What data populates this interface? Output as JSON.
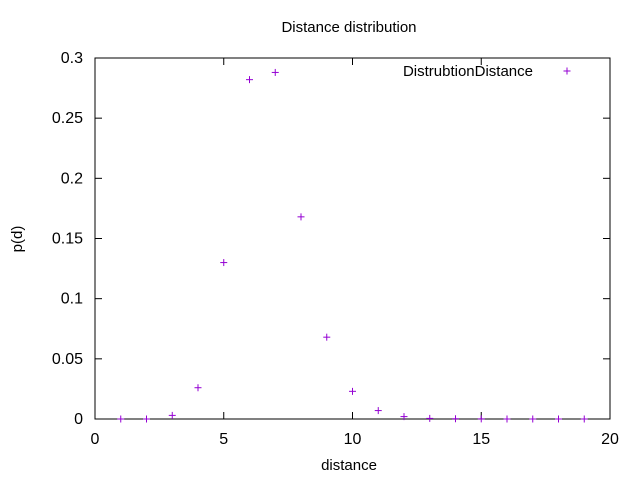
{
  "chart_data": {
    "type": "scatter",
    "title": "Distance distribution",
    "xlabel": "distance",
    "ylabel": "p(d)",
    "xlim": [
      0,
      20
    ],
    "ylim": [
      0,
      0.3
    ],
    "xticks": [
      0,
      5,
      10,
      15,
      20
    ],
    "yticks": [
      0,
      0.05,
      0.1,
      0.15,
      0.2,
      0.25,
      0.3
    ],
    "ytick_labels": [
      "0",
      "0.05",
      "0.1",
      "0.15",
      "0.2",
      "0.25",
      "0.3"
    ],
    "grid": false,
    "legend": "top-right",
    "marker": "plus",
    "series": [
      {
        "name": "DistrubtionDistance",
        "color": "#9400d3",
        "x": [
          1,
          2,
          3,
          4,
          5,
          6,
          7,
          8,
          9,
          10,
          11,
          12,
          13,
          14,
          15,
          16,
          17,
          18,
          19
        ],
        "y": [
          0.0,
          0.0,
          0.003,
          0.026,
          0.13,
          0.282,
          0.288,
          0.168,
          0.068,
          0.023,
          0.007,
          0.002,
          0.0005,
          0.0002,
          0.0001,
          0.0,
          0.0,
          0.0,
          0.0
        ]
      }
    ]
  }
}
